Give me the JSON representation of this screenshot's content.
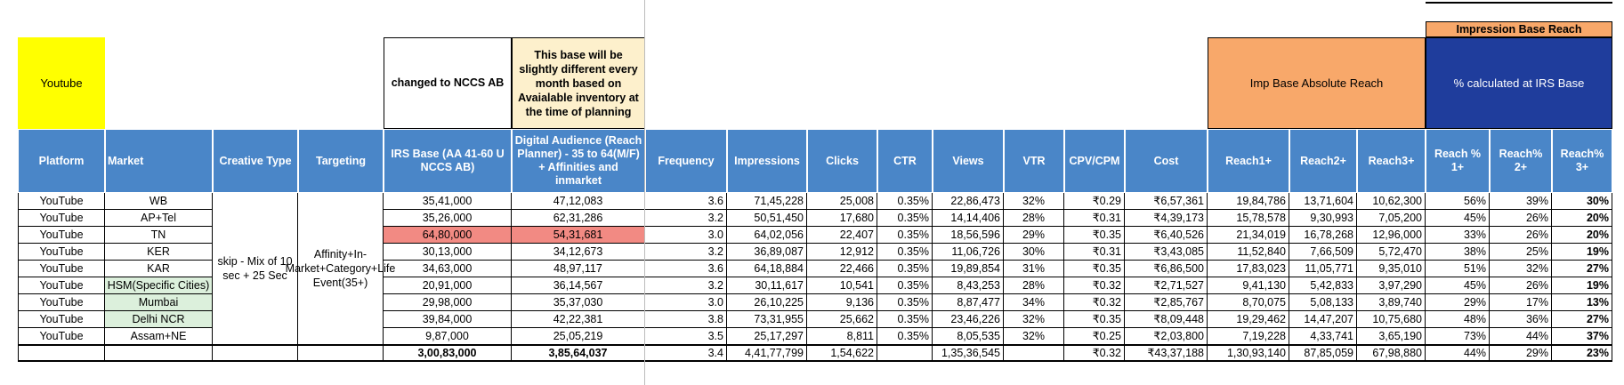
{
  "top": {
    "platform_label": "Youtube",
    "changed_note": "changed to NCCS AB",
    "base_note": "This base will be slightly different every month based on Avaialable inventory at the time of planning",
    "imp_base_absolute_reach": "Imp Base Absolute Reach",
    "impression_base_reach": "Impression Base Reach",
    "pct_calculated": "% calculated at IRS Base"
  },
  "headers": [
    "Platform",
    "Market",
    "Creative Type",
    "Targeting",
    "IRS Base (AA 41-60 U NCCS AB)",
    "Digital Audience (Reach Planner) - 35 to 64(M/F) + Affinities and inmarket",
    "Frequency",
    "Impressions",
    "Clicks",
    "CTR",
    "Views",
    "VTR",
    "CPV/CPM",
    "Cost",
    "Reach1+",
    "Reach2+",
    "Reach3+",
    "Reach % 1+",
    "Reach% 2+",
    "Reach% 3+"
  ],
  "merged": {
    "creative_type": "skip - Mix of 10 sec + 25 Sec",
    "targeting": "Affinity+In-Market+Category+Life Event(35+)"
  },
  "colors": {
    "yellow": "#ffff00",
    "header_blue": "#4a86c8",
    "cream": "#fdf0cc",
    "orange": "#f8a86a",
    "navy": "#1f3d9c",
    "red_cell": "#f28a83",
    "green_cell": "#dcf0dc"
  },
  "rows": [
    {
      "platform": "YouTube",
      "market": "WB",
      "irs": "35,41,000",
      "da": "47,12,083",
      "freq": "3.6",
      "imp": "71,45,228",
      "clicks": "25,008",
      "ctr": "0.35%",
      "views": "22,86,473",
      "vtr": "32%",
      "cpv": "₹0.29",
      "cost": "₹6,57,361",
      "r1": "19,84,786",
      "r2": "13,71,604",
      "r3": "10,62,300",
      "p1": "56%",
      "p2": "39%",
      "p3": "30%",
      "highlight": ""
    },
    {
      "platform": "YouTube",
      "market": "AP+Tel",
      "irs": "35,26,000",
      "da": "62,31,286",
      "freq": "3.2",
      "imp": "50,51,450",
      "clicks": "17,680",
      "ctr": "0.35%",
      "views": "14,14,406",
      "vtr": "28%",
      "cpv": "₹0.31",
      "cost": "₹4,39,173",
      "r1": "15,78,578",
      "r2": "9,30,993",
      "r3": "7,05,200",
      "p1": "45%",
      "p2": "26%",
      "p3": "20%",
      "highlight": ""
    },
    {
      "platform": "YouTube",
      "market": "TN",
      "irs": "64,80,000",
      "da": "54,31,681",
      "freq": "3.0",
      "imp": "64,02,056",
      "clicks": "22,407",
      "ctr": "0.35%",
      "views": "18,56,596",
      "vtr": "29%",
      "cpv": "₹0.35",
      "cost": "₹6,40,526",
      "r1": "21,34,019",
      "r2": "16,78,268",
      "r3": "12,96,000",
      "p1": "33%",
      "p2": "26%",
      "p3": "20%",
      "highlight": "red"
    },
    {
      "platform": "YouTube",
      "market": "KER",
      "irs": "30,13,000",
      "da": "34,12,673",
      "freq": "3.2",
      "imp": "36,89,087",
      "clicks": "12,912",
      "ctr": "0.35%",
      "views": "11,06,726",
      "vtr": "30%",
      "cpv": "₹0.31",
      "cost": "₹3,43,085",
      "r1": "11,52,840",
      "r2": "7,66,509",
      "r3": "5,72,470",
      "p1": "38%",
      "p2": "25%",
      "p3": "19%",
      "highlight": ""
    },
    {
      "platform": "YouTube",
      "market": "KAR",
      "irs": "34,63,000",
      "da": "48,97,117",
      "freq": "3.6",
      "imp": "64,18,884",
      "clicks": "22,466",
      "ctr": "0.35%",
      "views": "19,89,854",
      "vtr": "31%",
      "cpv": "₹0.35",
      "cost": "₹6,86,500",
      "r1": "17,83,023",
      "r2": "11,05,771",
      "r3": "9,35,010",
      "p1": "51%",
      "p2": "32%",
      "p3": "27%",
      "highlight": ""
    },
    {
      "platform": "YouTube",
      "market": "HSM(Specific Cities)",
      "irs": "20,91,000",
      "da": "36,14,567",
      "freq": "3.2",
      "imp": "30,11,617",
      "clicks": "10,541",
      "ctr": "0.35%",
      "views": "8,43,253",
      "vtr": "28%",
      "cpv": "₹0.32",
      "cost": "₹2,71,527",
      "r1": "9,41,130",
      "r2": "5,42,833",
      "r3": "3,97,290",
      "p1": "45%",
      "p2": "26%",
      "p3": "19%",
      "highlight": "green"
    },
    {
      "platform": "YouTube",
      "market": "Mumbai",
      "irs": "29,98,000",
      "da": "35,37,030",
      "freq": "3.0",
      "imp": "26,10,225",
      "clicks": "9,136",
      "ctr": "0.35%",
      "views": "8,87,477",
      "vtr": "34%",
      "cpv": "₹0.32",
      "cost": "₹2,85,767",
      "r1": "8,70,075",
      "r2": "5,08,133",
      "r3": "3,89,740",
      "p1": "29%",
      "p2": "17%",
      "p3": "13%",
      "highlight": "green"
    },
    {
      "platform": "YouTube",
      "market": "Delhi NCR",
      "irs": "39,84,000",
      "da": "42,22,381",
      "freq": "3.8",
      "imp": "73,31,955",
      "clicks": "25,662",
      "ctr": "0.35%",
      "views": "23,46,226",
      "vtr": "32%",
      "cpv": "₹0.35",
      "cost": "₹8,09,448",
      "r1": "19,29,462",
      "r2": "14,47,207",
      "r3": "10,75,680",
      "p1": "48%",
      "p2": "36%",
      "p3": "27%",
      "highlight": "green"
    },
    {
      "platform": "YouTube",
      "market": "Assam+NE",
      "irs": "9,87,000",
      "da": "25,05,219",
      "freq": "3.5",
      "imp": "25,17,297",
      "clicks": "8,811",
      "ctr": "0.35%",
      "views": "8,05,535",
      "vtr": "32%",
      "cpv": "₹0.25",
      "cost": "₹2,03,800",
      "r1": "7,19,228",
      "r2": "4,33,741",
      "r3": "3,65,190",
      "p1": "73%",
      "p2": "44%",
      "p3": "37%",
      "highlight": ""
    }
  ],
  "total": {
    "irs": "3,00,83,000",
    "da": "3,85,64,037",
    "freq": "3.4",
    "imp": "4,41,77,799",
    "clicks": "1,54,622",
    "ctr": "",
    "views": "1,35,36,545",
    "vtr": "",
    "cpv": "₹0.32",
    "cost": "₹43,37,188",
    "r1": "1,30,93,140",
    "r2": "87,85,059",
    "r3": "67,98,880",
    "p1": "44%",
    "p2": "29%",
    "p3": "23%"
  }
}
